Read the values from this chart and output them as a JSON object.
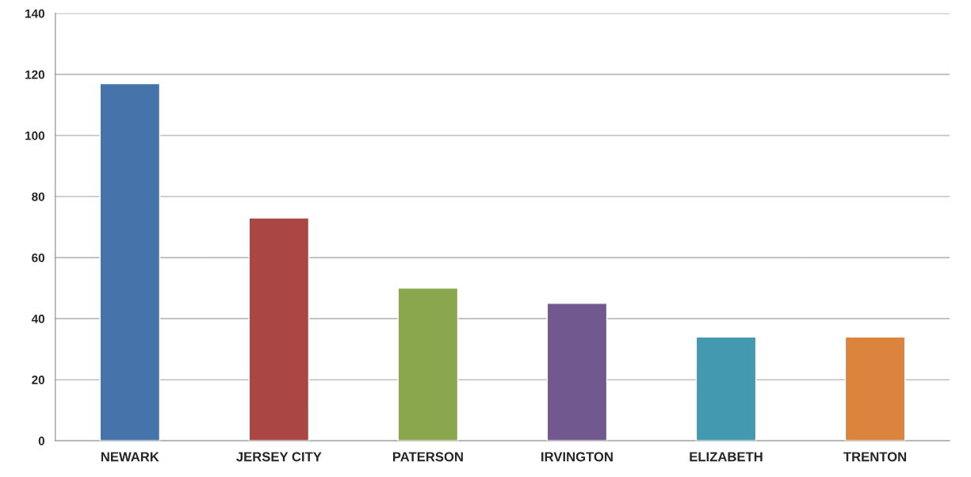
{
  "chart_data": {
    "type": "bar",
    "categories": [
      "NEWARK",
      "JERSEY CITY",
      "PATERSON",
      "IRVINGTON",
      "ELIZABETH",
      "TRENTON"
    ],
    "values": [
      117,
      73,
      50,
      45,
      34,
      34
    ],
    "colors": [
      "#4674aa",
      "#aa4744",
      "#8aa74e",
      "#71588f",
      "#4299b0",
      "#db843d"
    ],
    "ylim": [
      0,
      140
    ],
    "yticks": [
      0,
      20,
      40,
      60,
      80,
      100,
      120,
      140
    ],
    "grid": "y"
  }
}
